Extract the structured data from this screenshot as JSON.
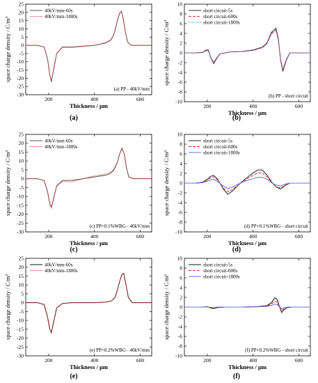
{
  "chart_data": [
    {
      "id": "a",
      "type": "line",
      "panel_label": "(a)",
      "xlabel": "Thickness / μm",
      "ylabel": "space charge density / C/m³",
      "xlim": [
        100,
        650
      ],
      "ylim": [
        -30,
        25
      ],
      "xticks": [
        200,
        400,
        600
      ],
      "yticks": [
        -30,
        -25,
        -20,
        -15,
        -10,
        -5,
        0,
        5,
        10,
        15,
        20,
        25
      ],
      "annotation": "(a) PP - 40kV/mm",
      "legend": "top-left",
      "series": [
        {
          "name": "40kV/mm-60s",
          "color": "#555555",
          "dash": "solid",
          "x": [
            100,
            150,
            180,
            195,
            205,
            212,
            220,
            235,
            260,
            300,
            350,
            400,
            450,
            470,
            480,
            490,
            500,
            510,
            518,
            526,
            535,
            545,
            560,
            600,
            650
          ],
          "y": [
            0,
            0,
            -1,
            -8,
            -18,
            -22,
            -16,
            -5,
            -1,
            -1,
            -0.5,
            0,
            1.5,
            3,
            5,
            9,
            15,
            19.5,
            20.5,
            16,
            8,
            2,
            0,
            0,
            0
          ]
        },
        {
          "name": "40kV/mm-1800s",
          "color": "#e03030",
          "dash": "dotted",
          "x": [
            100,
            150,
            180,
            195,
            205,
            212,
            220,
            235,
            260,
            300,
            350,
            400,
            450,
            470,
            480,
            490,
            500,
            510,
            518,
            526,
            535,
            545,
            560,
            600,
            650
          ],
          "y": [
            0,
            0,
            -1,
            -8,
            -18,
            -22.5,
            -16,
            -5,
            -1.3,
            -1.3,
            -0.7,
            0,
            1.8,
            3.3,
            5.3,
            9.5,
            15.3,
            19.8,
            20.8,
            16.2,
            8,
            2,
            0,
            0,
            0
          ]
        }
      ]
    },
    {
      "id": "b",
      "type": "line",
      "panel_label": "(b)",
      "xlabel": "Thickness / μm",
      "ylabel": "space charge density / C/m³",
      "xlim": [
        100,
        650
      ],
      "ylim": [
        -10,
        10
      ],
      "xticks": [
        200,
        400,
        600
      ],
      "yticks": [
        -10,
        -8,
        -6,
        -4,
        -2,
        0,
        2,
        4,
        6,
        8,
        10
      ],
      "annotation": "(b) PP - short circuit",
      "legend": "top-left",
      "series": [
        {
          "name": "short circuit-5s",
          "color": "#333333",
          "dash": "solid",
          "x": [
            100,
            150,
            180,
            195,
            205,
            215,
            228,
            240,
            255,
            300,
            350,
            400,
            440,
            460,
            480,
            500,
            510,
            520,
            530,
            545,
            560,
            600,
            650
          ],
          "y": [
            0,
            0,
            0.1,
            0.6,
            0.6,
            -1,
            -2.2,
            -1.2,
            -0.2,
            0.2,
            0.3,
            0.6,
            1.2,
            2,
            4.2,
            5.1,
            3,
            -1.5,
            -3.8,
            -1.5,
            0,
            0,
            0
          ]
        },
        {
          "name": "short circuit-600s",
          "color": "#e03030",
          "dash": "dashed",
          "x": [
            100,
            150,
            180,
            195,
            205,
            215,
            228,
            240,
            255,
            300,
            350,
            400,
            440,
            460,
            480,
            500,
            510,
            520,
            530,
            545,
            560,
            600,
            650
          ],
          "y": [
            0,
            0,
            0.1,
            0.5,
            0.5,
            -1,
            -2,
            -1.1,
            -0.2,
            0.2,
            0.3,
            0.5,
            1.1,
            1.9,
            4,
            4.8,
            2.8,
            -1.4,
            -3.5,
            -1.4,
            0,
            0,
            0
          ]
        },
        {
          "name": "short circuit-1800s",
          "color": "#6070e0",
          "dash": "dotted",
          "x": [
            100,
            150,
            180,
            195,
            205,
            215,
            228,
            240,
            255,
            300,
            350,
            400,
            440,
            460,
            480,
            500,
            510,
            520,
            530,
            545,
            560,
            600,
            650
          ],
          "y": [
            0,
            0,
            0.1,
            0.4,
            0.4,
            -0.9,
            -1.8,
            -1,
            -0.2,
            0.2,
            0.3,
            0.5,
            1,
            1.8,
            3.8,
            4.5,
            2.6,
            -1.3,
            -3.3,
            -1.3,
            0,
            0,
            0
          ]
        }
      ]
    },
    {
      "id": "c",
      "type": "line",
      "panel_label": "(c)",
      "xlabel": "Thickness / μm",
      "ylabel": "space charge density / C/m³",
      "xlim": [
        100,
        650
      ],
      "ylim": [
        -30,
        25
      ],
      "xticks": [
        200,
        400,
        600
      ],
      "yticks": [
        -30,
        -25,
        -20,
        -15,
        -10,
        -5,
        0,
        5,
        10,
        15,
        20,
        25
      ],
      "annotation": "(c) PP+0.1%WBG - 40kV/mm",
      "legend": "top-left",
      "series": [
        {
          "name": "40kV/mm-60s",
          "color": "#555555",
          "dash": "solid",
          "x": [
            100,
            150,
            180,
            195,
            205,
            212,
            220,
            235,
            260,
            300,
            350,
            400,
            450,
            470,
            485,
            500,
            510,
            520,
            530,
            540,
            550,
            570,
            600,
            650
          ],
          "y": [
            0,
            0,
            -1,
            -7,
            -14,
            -16,
            -12,
            -4,
            -1,
            -1,
            0,
            1,
            2,
            3,
            5,
            9,
            14,
            17,
            14,
            6,
            1,
            0,
            0,
            0
          ]
        },
        {
          "name": "40kV/mm-1800s",
          "color": "#e03030",
          "dash": "dotted",
          "x": [
            100,
            150,
            180,
            195,
            205,
            212,
            220,
            235,
            260,
            300,
            350,
            400,
            450,
            470,
            485,
            500,
            510,
            520,
            530,
            540,
            550,
            570,
            600,
            650
          ],
          "y": [
            0,
            0,
            -1,
            -7.5,
            -14.5,
            -16.5,
            -12.3,
            -4.2,
            -1.5,
            -1.8,
            0,
            1.6,
            2.6,
            3.5,
            5.5,
            9.3,
            14.3,
            17.3,
            14.2,
            6.2,
            1,
            0,
            0,
            0
          ]
        }
      ]
    },
    {
      "id": "d",
      "type": "line",
      "panel_label": "(d)",
      "xlabel": "Thickness / μm",
      "ylabel": "space charge density / C/m³",
      "xlim": [
        100,
        650
      ],
      "ylim": [
        -10,
        10
      ],
      "xticks": [
        200,
        400,
        600
      ],
      "yticks": [
        -10,
        -8,
        -6,
        -4,
        -2,
        0,
        2,
        4,
        6,
        8,
        10
      ],
      "annotation": "(d) PP+0.1%WBG - short circuit",
      "legend": "top-left",
      "series": [
        {
          "name": "short circuit-5s",
          "color": "#222222",
          "dash": "solid",
          "x": [
            100,
            150,
            180,
            200,
            215,
            228,
            245,
            270,
            290,
            310,
            340,
            370,
            400,
            420,
            440,
            460,
            480,
            500,
            520,
            540,
            560,
            600,
            650
          ],
          "y": [
            0,
            0,
            0.2,
            0.8,
            1.4,
            1.6,
            0.8,
            -1.2,
            -2.3,
            -1.6,
            -0.2,
            1,
            2.1,
            2.7,
            2.7,
            1.7,
            0.3,
            -0.8,
            -1.2,
            -0.5,
            0,
            0,
            0
          ]
        },
        {
          "name": "short circuit-600s",
          "color": "#e03030",
          "dash": "dashed",
          "x": [
            100,
            150,
            180,
            200,
            215,
            228,
            245,
            270,
            290,
            310,
            340,
            370,
            400,
            420,
            440,
            460,
            480,
            500,
            520,
            540,
            560,
            600,
            650
          ],
          "y": [
            0,
            0,
            0.1,
            0.6,
            1.1,
            1.3,
            0.6,
            -1,
            -1.8,
            -1.3,
            -0.2,
            0.8,
            1.6,
            2.1,
            2.1,
            1.3,
            0.2,
            -0.7,
            -1,
            -0.4,
            0,
            0,
            0
          ]
        },
        {
          "name": "short circuit-1800s",
          "color": "#6070e0",
          "dash": "solid",
          "x": [
            100,
            150,
            180,
            200,
            215,
            228,
            245,
            270,
            290,
            310,
            340,
            370,
            400,
            420,
            440,
            460,
            480,
            500,
            520,
            540,
            560,
            600,
            650
          ],
          "y": [
            0,
            0,
            0.1,
            0.4,
            0.7,
            0.8,
            0.3,
            -0.6,
            -1.1,
            -0.8,
            -0.1,
            0.5,
            0.9,
            1.2,
            1.2,
            0.8,
            0.1,
            -0.4,
            -0.6,
            -0.2,
            0,
            0,
            0
          ]
        }
      ]
    },
    {
      "id": "e",
      "type": "line",
      "panel_label": "(e)",
      "xlabel": "Thickness / μm",
      "ylabel": "space charge density / C/m³",
      "xlim": [
        100,
        650
      ],
      "ylim": [
        -30,
        25
      ],
      "xticks": [
        200,
        400,
        600
      ],
      "yticks": [
        -30,
        -25,
        -20,
        -15,
        -10,
        -5,
        0,
        5,
        10,
        15,
        20,
        25
      ],
      "annotation": "(e) PP+0.2%WBG - 40kV/mm",
      "legend": "top-left",
      "series": [
        {
          "name": "40kV/mm-60s",
          "color": "#111111",
          "dash": "solid",
          "x": [
            100,
            150,
            180,
            195,
            205,
            212,
            220,
            235,
            260,
            300,
            350,
            400,
            450,
            475,
            490,
            500,
            510,
            520,
            528,
            538,
            548,
            565,
            600,
            650
          ],
          "y": [
            0,
            0,
            -1,
            -8,
            -15,
            -17,
            -12,
            -3,
            -0.5,
            0,
            0,
            0,
            0.3,
            1,
            3,
            7,
            12,
            16,
            16.5,
            10,
            3,
            0,
            0,
            0
          ]
        },
        {
          "name": "40kV/mm-1800s",
          "color": "#e03030",
          "dash": "dotted",
          "x": [
            100,
            150,
            180,
            195,
            205,
            212,
            220,
            235,
            260,
            300,
            350,
            400,
            450,
            475,
            490,
            500,
            510,
            520,
            528,
            538,
            548,
            565,
            600,
            650
          ],
          "y": [
            0,
            0,
            -1,
            -7.8,
            -14.8,
            -16.8,
            -11.8,
            -3,
            -0.5,
            0,
            0,
            0,
            0.3,
            1,
            3,
            7,
            12,
            16.1,
            16.6,
            10,
            3,
            0,
            0,
            0
          ]
        }
      ]
    },
    {
      "id": "f",
      "type": "line",
      "panel_label": "(f)",
      "xlabel": "Thickness / μm",
      "ylabel": "space charge density / C/m³",
      "xlim": [
        100,
        650
      ],
      "ylim": [
        -10,
        10
      ],
      "xticks": [
        200,
        400,
        600
      ],
      "yticks": [
        -10,
        -8,
        -6,
        -4,
        -2,
        0,
        2,
        4,
        6,
        8,
        10
      ],
      "annotation": "(f) PP+0.2%WBG - short circuit",
      "legend": "top-left",
      "series": [
        {
          "name": "short circuit-5s",
          "color": "#111111",
          "dash": "solid",
          "x": [
            100,
            150,
            180,
            200,
            215,
            228,
            245,
            280,
            350,
            420,
            460,
            480,
            495,
            505,
            515,
            525,
            535,
            550,
            570,
            600,
            650
          ],
          "y": [
            0,
            0,
            0,
            0.1,
            -0.2,
            -0.3,
            -0.1,
            0,
            0,
            0.1,
            0.3,
            0.9,
            1.9,
            1.6,
            0.1,
            -1.1,
            -0.5,
            -0.1,
            0,
            0,
            0
          ]
        },
        {
          "name": "short circuit-600s",
          "color": "#e03030",
          "dash": "dashed",
          "x": [
            100,
            150,
            180,
            200,
            215,
            228,
            245,
            280,
            350,
            420,
            460,
            480,
            495,
            505,
            515,
            525,
            535,
            550,
            570,
            600,
            650
          ],
          "y": [
            0,
            0,
            0,
            0.05,
            -0.1,
            -0.2,
            -0.05,
            0,
            0,
            0.1,
            0.2,
            0.6,
            1.2,
            1,
            0.05,
            -0.7,
            -0.3,
            -0.05,
            0,
            0,
            0
          ]
        },
        {
          "name": "short circuit-1800s",
          "color": "#6070e0",
          "dash": "solid",
          "x": [
            100,
            150,
            180,
            200,
            215,
            228,
            245,
            280,
            350,
            420,
            460,
            480,
            495,
            505,
            515,
            525,
            535,
            550,
            570,
            600,
            650
          ],
          "y": [
            0,
            0,
            0,
            0.05,
            -0.05,
            -0.1,
            0,
            0,
            0,
            0.05,
            0.15,
            0.35,
            0.6,
            0.5,
            0.05,
            -0.3,
            -0.15,
            0,
            0,
            0,
            0
          ]
        }
      ]
    }
  ]
}
